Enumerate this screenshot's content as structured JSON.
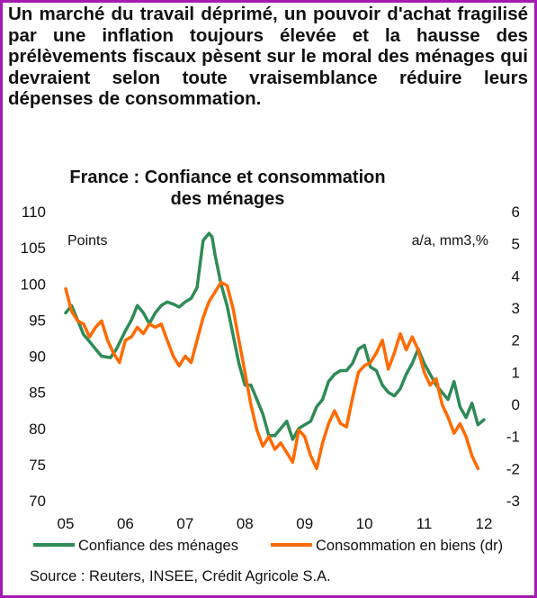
{
  "headline": "Un marché du travail déprimé, un pouvoir d'achat fragilisé par une inflation toujours élevée et la hausse des prélèvements fiscaux pèsent sur le moral des ménages qui devraient selon toute vraisemblance réduire leurs dépenses de consommation.",
  "source": "Source : Reuters, INSEE, Crédit Agricole S.A.",
  "colors": {
    "frame": "#a21caf",
    "confidence": "#2e8b57",
    "consumption": "#ff6a00"
  },
  "chart_data": {
    "type": "line",
    "title": "France : Confiance et consommation des ménages",
    "title_lines": [
      "France : Confiance et consommation",
      "des ménages"
    ],
    "ylabel_left": "Points",
    "ylabel_right": "a/a, mm3,%",
    "ylim_left": [
      70,
      110
    ],
    "yticks_left": [
      "110",
      "105",
      "100",
      "95",
      "90",
      "85",
      "80",
      "75",
      "70"
    ],
    "ylim_right": [
      -3,
      6
    ],
    "yticks_right": [
      "6",
      "5",
      "4",
      "3",
      "2",
      "1",
      "0",
      "-1",
      "-2",
      "-3"
    ],
    "x_ticks": [
      "05",
      "06",
      "07",
      "08",
      "09",
      "10",
      "11",
      "12"
    ],
    "xlim": [
      2005.0,
      2012.0
    ],
    "grid": false,
    "legend_position": "bottom",
    "series": [
      {
        "name": "Confiance des ménages",
        "axis": "left",
        "color": "#2e8b57",
        "x": [
          2005.0,
          2005.1,
          2005.2,
          2005.3,
          2005.4,
          2005.5,
          2005.6,
          2005.75,
          2005.85,
          2006.0,
          2006.1,
          2006.2,
          2006.3,
          2006.4,
          2006.5,
          2006.6,
          2006.7,
          2006.8,
          2006.9,
          2007.0,
          2007.1,
          2007.2,
          2007.3,
          2007.4,
          2007.45,
          2007.5,
          2007.6,
          2007.7,
          2007.8,
          2007.9,
          2008.0,
          2008.1,
          2008.2,
          2008.3,
          2008.4,
          2008.5,
          2008.6,
          2008.7,
          2008.8,
          2008.9,
          2009.0,
          2009.1,
          2009.2,
          2009.3,
          2009.4,
          2009.5,
          2009.6,
          2009.7,
          2009.8,
          2009.9,
          2010.0,
          2010.1,
          2010.2,
          2010.3,
          2010.4,
          2010.5,
          2010.6,
          2010.7,
          2010.8,
          2010.9,
          2011.0,
          2011.1,
          2011.2,
          2011.3,
          2011.4,
          2011.5,
          2011.6,
          2011.7,
          2011.8,
          2011.9,
          2012.0
        ],
        "values": [
          96,
          97,
          95,
          93,
          92,
          91,
          90,
          89.8,
          91,
          93.5,
          95,
          97,
          96,
          94.5,
          96,
          97,
          97.5,
          97.2,
          96.8,
          97.5,
          98,
          99.5,
          106,
          107,
          106.5,
          104,
          100,
          97,
          93,
          89,
          86,
          86,
          84,
          82,
          79,
          79,
          80,
          81,
          78.5,
          80,
          80.5,
          81,
          83,
          84,
          86.5,
          87.5,
          88,
          88,
          89,
          91,
          91.5,
          88.5,
          88,
          86,
          85,
          84.5,
          85.5,
          87.5,
          89,
          91,
          89,
          87.5,
          86,
          85,
          84,
          86.5,
          83,
          81.5,
          83.5,
          80.5,
          81.2
        ]
      },
      {
        "name": "Consommation en biens (dr)",
        "axis": "right",
        "color": "#ff6a00",
        "x": [
          2005.0,
          2005.1,
          2005.2,
          2005.3,
          2005.4,
          2005.5,
          2005.6,
          2005.7,
          2005.8,
          2005.9,
          2006.0,
          2006.1,
          2006.2,
          2006.3,
          2006.4,
          2006.5,
          2006.6,
          2006.7,
          2006.8,
          2006.9,
          2007.0,
          2007.1,
          2007.2,
          2007.3,
          2007.4,
          2007.5,
          2007.6,
          2007.7,
          2007.8,
          2007.9,
          2008.0,
          2008.1,
          2008.2,
          2008.3,
          2008.4,
          2008.5,
          2008.6,
          2008.7,
          2008.8,
          2008.9,
          2009.0,
          2009.1,
          2009.2,
          2009.3,
          2009.4,
          2009.5,
          2009.6,
          2009.7,
          2009.8,
          2009.9,
          2010.0,
          2010.1,
          2010.2,
          2010.3,
          2010.4,
          2010.5,
          2010.6,
          2010.7,
          2010.8,
          2010.9,
          2011.0,
          2011.1,
          2011.2,
          2011.3,
          2011.4,
          2011.5,
          2011.6,
          2011.7,
          2011.8,
          2011.9
        ],
        "values": [
          3.6,
          2.9,
          2.6,
          2.5,
          2.1,
          2.4,
          2.6,
          2.0,
          1.6,
          1.3,
          2.0,
          2.1,
          2.4,
          2.2,
          2.5,
          2.4,
          2.5,
          2.0,
          1.5,
          1.2,
          1.5,
          1.3,
          2.0,
          2.7,
          3.2,
          3.5,
          3.8,
          3.7,
          3.0,
          2.0,
          1.0,
          0.0,
          -0.8,
          -1.3,
          -1.0,
          -1.4,
          -1.2,
          -1.5,
          -1.8,
          -0.8,
          -1.0,
          -1.6,
          -2.0,
          -1.2,
          -0.6,
          -0.2,
          -0.6,
          -0.7,
          0.2,
          1.0,
          1.2,
          1.3,
          1.6,
          2.0,
          1.1,
          1.6,
          2.2,
          1.7,
          2.1,
          1.7,
          1.0,
          0.6,
          0.8,
          0.0,
          -0.4,
          -0.9,
          -0.6,
          -1.0,
          -1.6,
          -2.0
        ]
      }
    ]
  }
}
